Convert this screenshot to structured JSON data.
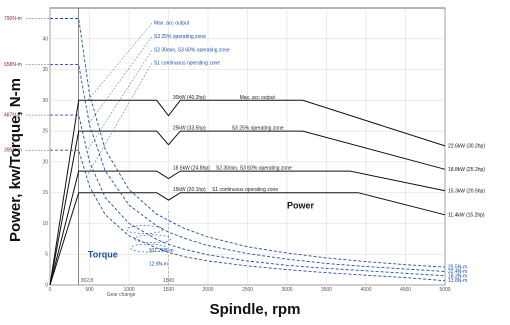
{
  "chart_data": {
    "type": "line",
    "xlabel": "Spindle, rpm",
    "ylabel": "Power, kw/Torque, N-m",
    "xlim": [
      0,
      5000
    ],
    "ylim": [
      0,
      45
    ],
    "x_ticks": [
      0,
      500,
      1000,
      1500,
      2000,
      2500,
      3000,
      3500,
      4000,
      4500,
      5000
    ],
    "y_ticks": [
      0,
      5,
      10,
      15,
      20,
      25,
      30,
      35,
      40
    ],
    "grid": true,
    "small_texts": {
      "gear_change": "Gear change",
      "rpm_362": "362.8",
      "rpm_1500": "1500",
      "torque_mid": "301.75N-m",
      "torque_low": "12.9N-m"
    },
    "power_labels": [
      {
        "text": "30kW (40.2hp)",
        "x": 1555,
        "y": 30
      },
      {
        "text": "25kW (33.5hp)",
        "x": 1555,
        "y": 25
      },
      {
        "text": "18.5kW (24.8hp)",
        "x": 1555,
        "y": 18.5
      },
      {
        "text": "15kW (20.1hp)",
        "x": 1555,
        "y": 15
      }
    ],
    "zone_labels": [
      {
        "text": "Max. acc output",
        "x": 2400,
        "y": 30
      },
      {
        "text": "S3 25% operating zone",
        "x": 2300,
        "y": 25
      },
      {
        "text": "S2 30min, S3 60% operating zone",
        "x": 2100,
        "y": 18.5
      },
      {
        "text": "S1 continuous operating zone",
        "x": 2050,
        "y": 15
      }
    ],
    "legend_annotations": [
      {
        "text": "Max. acc output",
        "x": 1315,
        "y": 42.3
      },
      {
        "text": "S3 25% operating zone",
        "x": 1315,
        "y": 40.1
      },
      {
        "text": "S2 30min, S3 60% operating zone",
        "x": 1315,
        "y": 37.9
      },
      {
        "text": "S1 continuous operating zone",
        "x": 1315,
        "y": 35.8
      }
    ],
    "left_torque_labels": [
      {
        "text": "790N-m",
        "y": 43.3
      },
      {
        "text": "658N-m",
        "y": 35.8
      },
      {
        "text": "487N-m",
        "y": 27.6
      },
      {
        "text": "395N-m",
        "y": 21.9
      }
    ],
    "right_power_labels": [
      {
        "text": "22.6kW (30.2hp)",
        "y": 22.6
      },
      {
        "text": "18.8kW (25.2hp)",
        "y": 18.8
      },
      {
        "text": "15.3kW (20.5hp)",
        "y": 15.3
      },
      {
        "text": "11.4kW (15.2hp)",
        "y": 11.4
      }
    ],
    "right_torque_labels": [
      {
        "text": "25.5N-m",
        "y": 2.9
      },
      {
        "text": "22.4N-m",
        "y": 2.2
      },
      {
        "text": "18.3N-m",
        "y": 1.5
      },
      {
        "text": "13.8N-m",
        "y": 0.7
      }
    ],
    "big_labels": {
      "power": "Power",
      "torque": "Torque"
    },
    "series": [
      {
        "name": "Max. acc output",
        "style": "solid",
        "color": "#111111",
        "points": [
          [
            0,
            0
          ],
          [
            362.8,
            30
          ],
          [
            1350,
            30
          ],
          [
            1500,
            27.5
          ],
          [
            1650,
            30
          ],
          [
            3200,
            30
          ],
          [
            5000,
            22.6
          ]
        ]
      },
      {
        "name": "S3 25% operating zone",
        "style": "solid",
        "color": "#111111",
        "points": [
          [
            0,
            0
          ],
          [
            362.8,
            25
          ],
          [
            1350,
            25
          ],
          [
            1500,
            22.8
          ],
          [
            1650,
            25
          ],
          [
            3200,
            25
          ],
          [
            5000,
            18.8
          ]
        ]
      },
      {
        "name": "S2 30min, S3 60% operating zone",
        "style": "solid",
        "color": "#111111",
        "points": [
          [
            0,
            0
          ],
          [
            362.8,
            18.5
          ],
          [
            1350,
            18.5
          ],
          [
            1500,
            17.3
          ],
          [
            1650,
            18.5
          ],
          [
            3800,
            18.5
          ],
          [
            5000,
            15.3
          ]
        ]
      },
      {
        "name": "S1 continuous operating zone",
        "style": "solid",
        "color": "#111111",
        "points": [
          [
            0,
            0
          ],
          [
            362.8,
            15
          ],
          [
            1350,
            15
          ],
          [
            1500,
            13.8
          ],
          [
            1650,
            15
          ],
          [
            3900,
            15
          ],
          [
            5000,
            11.4
          ]
        ]
      },
      {
        "name": "Torque Max. acc output",
        "style": "dashed",
        "color": "#1f4fa6",
        "points": [
          [
            0,
            43.3
          ],
          [
            362.8,
            43.3
          ],
          [
            500,
            31
          ],
          [
            700,
            22
          ],
          [
            1000,
            15.5
          ],
          [
            1350,
            11.5
          ],
          [
            1500,
            10.5
          ],
          [
            1700,
            9.2
          ],
          [
            2000,
            7.8
          ],
          [
            2500,
            6.2
          ],
          [
            3000,
            5.2
          ],
          [
            3500,
            4.4
          ],
          [
            4000,
            3.8
          ],
          [
            4500,
            3.3
          ],
          [
            5000,
            2.9
          ]
        ]
      },
      {
        "name": "Torque S3 25% operating zone",
        "style": "dashed",
        "color": "#1f4fa6",
        "points": [
          [
            0,
            35.8
          ],
          [
            362.8,
            35.8
          ],
          [
            500,
            26
          ],
          [
            700,
            18.5
          ],
          [
            1000,
            13
          ],
          [
            1350,
            9.6
          ],
          [
            1500,
            8.6
          ],
          [
            1700,
            7.6
          ],
          [
            2000,
            6.4
          ],
          [
            2500,
            5.1
          ],
          [
            3000,
            4.2
          ],
          [
            3500,
            3.5
          ],
          [
            4000,
            3.0
          ],
          [
            4500,
            2.6
          ],
          [
            5000,
            2.2
          ]
        ]
      },
      {
        "name": "Torque S2 30min, S3 60% operating zone",
        "style": "dashed",
        "color": "#1f4fa6",
        "points": [
          [
            0,
            27.6
          ],
          [
            362.8,
            27.6
          ],
          [
            500,
            20
          ],
          [
            700,
            14.2
          ],
          [
            1000,
            10
          ],
          [
            1350,
            7.4
          ],
          [
            1500,
            6.6
          ],
          [
            1700,
            5.8
          ],
          [
            2000,
            4.9
          ],
          [
            2500,
            3.9
          ],
          [
            3000,
            3.2
          ],
          [
            3500,
            2.7
          ],
          [
            4000,
            2.3
          ],
          [
            4500,
            1.9
          ],
          [
            5000,
            1.5
          ]
        ]
      },
      {
        "name": "Torque S1 continuous operating zone",
        "style": "dashed",
        "color": "#1f4fa6",
        "points": [
          [
            0,
            21.9
          ],
          [
            362.8,
            21.9
          ],
          [
            500,
            16
          ],
          [
            700,
            11.4
          ],
          [
            1000,
            8
          ],
          [
            1350,
            6
          ],
          [
            1500,
            5.3
          ],
          [
            1700,
            4.6
          ],
          [
            2000,
            3.9
          ],
          [
            2500,
            3.1
          ],
          [
            3000,
            2.5
          ],
          [
            3500,
            2.0
          ],
          [
            4000,
            1.6
          ],
          [
            4500,
            1.2
          ],
          [
            5000,
            0.7
          ]
        ]
      }
    ]
  }
}
